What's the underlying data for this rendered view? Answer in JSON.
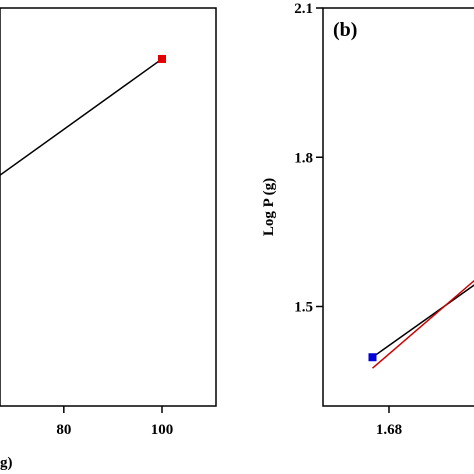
{
  "chart_data": [
    {
      "type": "line",
      "x_label": "g)",
      "xlim": [
        67,
        111
      ],
      "xticks": [
        80,
        100
      ],
      "ylim": [
        0,
        1
      ],
      "series": [
        {
          "x": [
            67,
            100
          ],
          "values": [
            0.58,
            0.872
          ],
          "color": "#000000",
          "marker": "line"
        },
        {
          "x": [
            100
          ],
          "values": [
            0.872
          ],
          "color": "#e00000",
          "marker": "square"
        }
      ]
    },
    {
      "type": "line",
      "title": "(b)",
      "y_label": "Log P (g)",
      "xlim": [
        1.66,
        1.72
      ],
      "xticks": [
        1.68
      ],
      "ylim": [
        1.3,
        2.1
      ],
      "yticks": [
        1.5,
        1.8,
        2.1
      ],
      "series": [
        {
          "x": [
            1.675,
            1.706
          ],
          "values": [
            1.398,
            1.544
          ],
          "color": "#000000",
          "marker": "line"
        },
        {
          "x": [
            1.675,
            1.706
          ],
          "values": [
            1.376,
            1.553
          ],
          "color": "#cc0000",
          "marker": "line"
        },
        {
          "x": [
            1.675
          ],
          "values": [
            1.398
          ],
          "color": "#0000dd",
          "marker": "square"
        }
      ]
    }
  ]
}
